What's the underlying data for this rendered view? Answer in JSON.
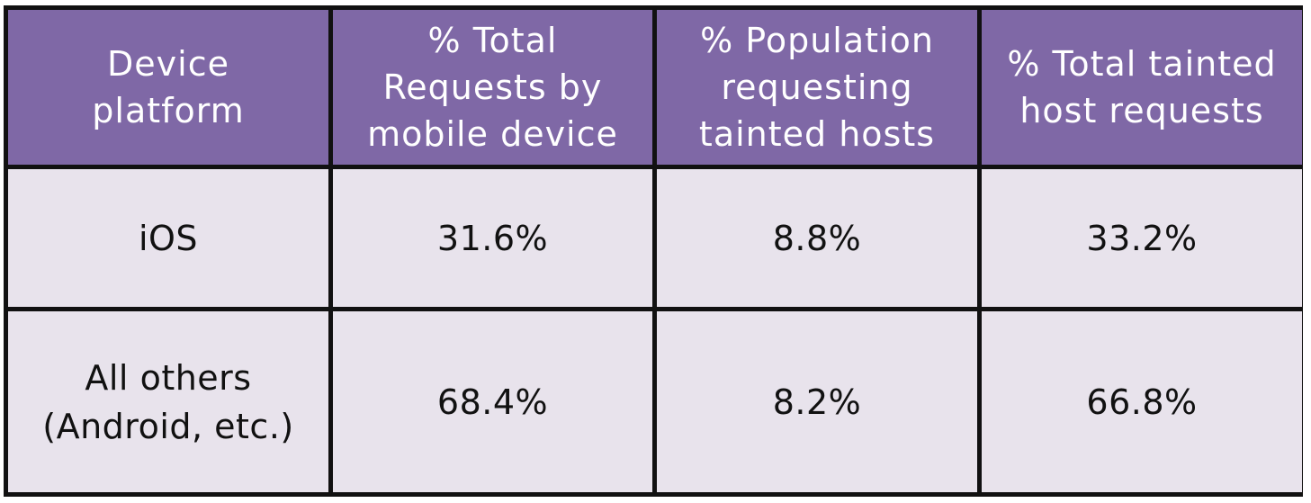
{
  "table": {
    "headers": [
      "Device\nplatform",
      "% Total\nRequests by\nmobile device",
      "% Population\nrequesting\ntainted hosts",
      "% Total tainted\nhost requests"
    ],
    "rows": [
      {
        "platform": "iOS",
        "total_requests": "31.6%",
        "population_tainted": "8.8%",
        "total_tainted": "33.2%"
      },
      {
        "platform": "All others\n(Android, etc.)",
        "total_requests": "68.4%",
        "population_tainted": "8.2%",
        "total_tainted": "66.8%"
      }
    ],
    "colors": {
      "header_bg": "#7f68a6",
      "cell_bg": "#e8e3ec",
      "border": "#111111"
    }
  }
}
